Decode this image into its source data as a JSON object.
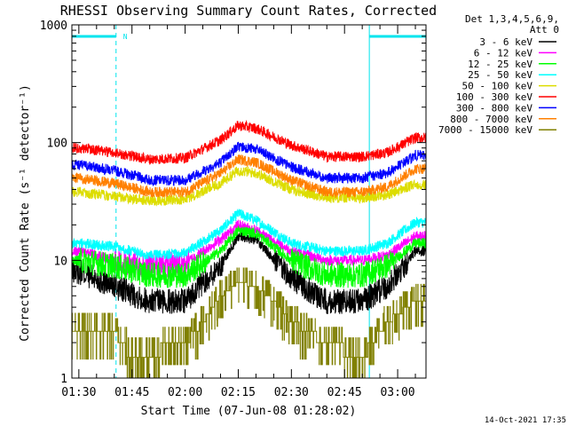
{
  "chart_data": {
    "type": "line",
    "title": "RHESSI Observing Summary Count Rates, Corrected",
    "xlabel": "Start Time (07-Jun-08 01:28:02)",
    "ylabel": "Corrected Count Rate (s⁻¹ detector⁻¹)",
    "y_scale": "log",
    "ylim": [
      1,
      1000
    ],
    "xlim": [
      "01:28:02",
      "03:08:00"
    ],
    "x_tick_labels": [
      "01:30",
      "01:45",
      "02:00",
      "02:15",
      "02:30",
      "02:45",
      "03:00"
    ],
    "y_tick_labels": [
      "1",
      "10",
      "100",
      "1000"
    ],
    "legend_title": [
      "Det 1,3,4,5,6,9,",
      "Att 0"
    ],
    "legend_position": "right, outside plot",
    "annotation_marker": "N",
    "timestamp": "14-Oct-2021 17:35",
    "night_intervals": [
      [
        "01:28:02",
        "01:40:30"
      ],
      [
        "02:52:00",
        "03:08:00"
      ]
    ],
    "series": [
      {
        "name": "3 - 6 keV",
        "color": "#000000",
        "x": [
          "01:30",
          "01:40",
          "01:50",
          "02:00",
          "02:10",
          "02:15",
          "02:20",
          "02:30",
          "02:40",
          "02:50",
          "02:57",
          "03:05"
        ],
        "values": [
          8,
          6,
          4.5,
          4.5,
          9,
          16,
          15,
          7,
          4.5,
          4.5,
          6,
          12
        ]
      },
      {
        "name": "6 - 12 keV",
        "color": "#ff00ff",
        "x": [
          "01:30",
          "01:40",
          "01:50",
          "02:00",
          "02:10",
          "02:15",
          "02:20",
          "02:30",
          "02:40",
          "02:50",
          "02:57",
          "03:05"
        ],
        "values": [
          12,
          10,
          9,
          9.5,
          15,
          20,
          18,
          12,
          10,
          10,
          11,
          16
        ]
      },
      {
        "name": "12 - 25 keV",
        "color": "#00ff00",
        "x": [
          "01:30",
          "01:40",
          "01:50",
          "02:00",
          "02:10",
          "02:15",
          "02:20",
          "02:30",
          "02:40",
          "02:50",
          "02:57",
          "03:05"
        ],
        "values": [
          10,
          9,
          7.5,
          7.5,
          12,
          18,
          17,
          10,
          7.5,
          7.5,
          9,
          14
        ]
      },
      {
        "name": "25 - 50 keV",
        "color": "#00ffff",
        "x": [
          "01:30",
          "01:40",
          "01:50",
          "02:00",
          "02:10",
          "02:15",
          "02:20",
          "02:30",
          "02:40",
          "02:50",
          "02:57",
          "03:05"
        ],
        "values": [
          14,
          13,
          11,
          11.5,
          18,
          25,
          22,
          14,
          12,
          12,
          14,
          21
        ]
      },
      {
        "name": "50 - 100 keV",
        "color": "#dddd00",
        "x": [
          "01:30",
          "01:40",
          "01:50",
          "02:00",
          "02:10",
          "02:15",
          "02:20",
          "02:30",
          "02:40",
          "02:50",
          "02:57",
          "03:05"
        ],
        "values": [
          38,
          35,
          32,
          33,
          45,
          58,
          55,
          40,
          34,
          34,
          36,
          44
        ]
      },
      {
        "name": "100 - 300 keV",
        "color": "#ff0000",
        "x": [
          "01:30",
          "01:40",
          "01:50",
          "02:00",
          "02:10",
          "02:15",
          "02:20",
          "02:30",
          "02:40",
          "02:50",
          "02:57",
          "03:05"
        ],
        "values": [
          90,
          82,
          72,
          74,
          105,
          140,
          132,
          95,
          76,
          76,
          82,
          110
        ]
      },
      {
        "name": "300 - 800 keV",
        "color": "#0000ff",
        "x": [
          "01:30",
          "01:40",
          "01:50",
          "02:00",
          "02:10",
          "02:15",
          "02:20",
          "02:30",
          "02:40",
          "02:50",
          "02:57",
          "03:05"
        ],
        "values": [
          65,
          58,
          48,
          48,
          68,
          93,
          88,
          62,
          50,
          50,
          55,
          78
        ]
      },
      {
        "name": "800 - 7000 keV",
        "color": "#ff8000",
        "x": [
          "01:30",
          "01:40",
          "01:50",
          "02:00",
          "02:10",
          "02:15",
          "02:20",
          "02:30",
          "02:40",
          "02:50",
          "02:57",
          "03:05"
        ],
        "values": [
          50,
          45,
          38,
          38,
          55,
          72,
          68,
          48,
          38,
          38,
          42,
          60
        ]
      },
      {
        "name": "7000 - 15000 keV",
        "color": "#808000",
        "x": [
          "01:30",
          "01:40",
          "01:45",
          "02:00",
          "02:05",
          "02:10",
          "02:15",
          "02:20",
          "02:25",
          "02:30",
          "02:40",
          "02:50",
          "02:57",
          "03:05"
        ],
        "values": [
          2.5,
          2.5,
          1.5,
          2,
          3,
          5,
          6.5,
          6,
          4.5,
          3,
          2,
          1.5,
          3,
          4.5
        ]
      }
    ]
  }
}
